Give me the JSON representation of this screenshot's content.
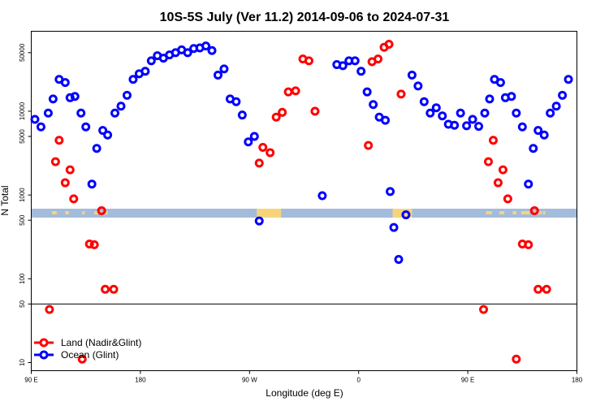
{
  "chart_data": {
    "type": "scatter",
    "title": "10S-5S July (Ver 11.2)   2014-09-06 to 2024-07-31",
    "xlabel": "Longitude (deg E)",
    "ylabel": "N Total",
    "x_ticks": [
      {
        "value": 90,
        "label": "90 E"
      },
      {
        "value": 180,
        "label": "180"
      },
      {
        "value": 270,
        "label": "90 W"
      },
      {
        "value": 360,
        "label": "0"
      },
      {
        "value": 450,
        "label": "90 E"
      },
      {
        "value": 540,
        "label": "180"
      }
    ],
    "y_ticks": [
      10,
      50,
      100,
      500,
      1000,
      5000,
      10000,
      50000
    ],
    "y_scale": "log",
    "xlim": [
      90,
      540
    ],
    "ylim": [
      8,
      90000
    ],
    "reference_line_y": 50,
    "series": [
      {
        "name": "Land (Nadir&Glint)",
        "color": "#ff0000",
        "points": [
          [
            105,
            43
          ],
          [
            110,
            2500
          ],
          [
            113,
            4500
          ],
          [
            118,
            1400
          ],
          [
            122,
            2000
          ],
          [
            125,
            900
          ],
          [
            132,
            11
          ],
          [
            138,
            260
          ],
          [
            142,
            255
          ],
          [
            148,
            650
          ],
          [
            151,
            75
          ],
          [
            158,
            75
          ],
          [
            278,
            2400
          ],
          [
            281,
            3700
          ],
          [
            287,
            3200
          ],
          [
            292,
            8500
          ],
          [
            297,
            9700
          ],
          [
            302,
            17000
          ],
          [
            308,
            17500
          ],
          [
            314,
            42000
          ],
          [
            319,
            40000
          ],
          [
            324,
            10000
          ],
          [
            368,
            3900
          ],
          [
            371,
            39000
          ],
          [
            376,
            42000
          ],
          [
            381,
            58000
          ],
          [
            385,
            63000
          ],
          [
            395,
            16000
          ],
          [
            463,
            43
          ],
          [
            467,
            2500
          ],
          [
            471,
            4500
          ],
          [
            475,
            1400
          ],
          [
            479,
            2000
          ],
          [
            483,
            900
          ],
          [
            490,
            11
          ],
          [
            495,
            260
          ],
          [
            500,
            255
          ],
          [
            505,
            650
          ],
          [
            508,
            75
          ],
          [
            515,
            75
          ]
        ]
      },
      {
        "name": "Ocean (Glint)",
        "color": "#0000ff",
        "points": [
          [
            93,
            8000
          ],
          [
            98,
            6500
          ],
          [
            104,
            9500
          ],
          [
            108,
            14000
          ],
          [
            113,
            24000
          ],
          [
            118,
            22000
          ],
          [
            122,
            14500
          ],
          [
            126,
            15000
          ],
          [
            131,
            9500
          ],
          [
            135,
            6500
          ],
          [
            140,
            1350
          ],
          [
            144,
            3600
          ],
          [
            149,
            5900
          ],
          [
            153,
            5200
          ],
          [
            159,
            9500
          ],
          [
            164,
            11500
          ],
          [
            169,
            15500
          ],
          [
            174,
            24000
          ],
          [
            179,
            28000
          ],
          [
            184,
            30000
          ],
          [
            189,
            40000
          ],
          [
            194,
            46000
          ],
          [
            199,
            43000
          ],
          [
            204,
            47000
          ],
          [
            209,
            50000
          ],
          [
            214,
            54000
          ],
          [
            219,
            50000
          ],
          [
            224,
            56000
          ],
          [
            229,
            57000
          ],
          [
            234,
            60000
          ],
          [
            239,
            53000
          ],
          [
            244,
            27000
          ],
          [
            249,
            32000
          ],
          [
            254,
            14000
          ],
          [
            259,
            13000
          ],
          [
            264,
            9000
          ],
          [
            269,
            4300
          ],
          [
            274,
            5000
          ],
          [
            278,
            490
          ],
          [
            330,
            980
          ],
          [
            342,
            36000
          ],
          [
            347,
            35000
          ],
          [
            352,
            40000
          ],
          [
            357,
            40000
          ],
          [
            362,
            30000
          ],
          [
            367,
            17000
          ],
          [
            372,
            12000
          ],
          [
            377,
            8500
          ],
          [
            382,
            7800
          ],
          [
            386,
            1100
          ],
          [
            389,
            410
          ],
          [
            393,
            170
          ],
          [
            399,
            580
          ],
          [
            404,
            27000
          ],
          [
            409,
            20000
          ],
          [
            414,
            13000
          ],
          [
            419,
            9500
          ],
          [
            424,
            11000
          ],
          [
            429,
            8800
          ],
          [
            434,
            7000
          ],
          [
            439,
            6800
          ],
          [
            444,
            9500
          ],
          [
            449,
            6700
          ],
          [
            454,
            8000
          ],
          [
            459,
            6600
          ],
          [
            464,
            9500
          ],
          [
            468,
            14000
          ],
          [
            472,
            24000
          ],
          [
            477,
            22000
          ],
          [
            481,
            14500
          ],
          [
            486,
            15000
          ],
          [
            490,
            9500
          ],
          [
            495,
            6500
          ],
          [
            500,
            1350
          ],
          [
            504,
            3600
          ],
          [
            508,
            5900
          ],
          [
            513,
            5200
          ],
          [
            518,
            9500
          ],
          [
            523,
            11500
          ],
          [
            528,
            15500
          ],
          [
            533,
            24000
          ]
        ]
      }
    ],
    "legend": {
      "position": "bottom-left"
    },
    "grid": false
  }
}
